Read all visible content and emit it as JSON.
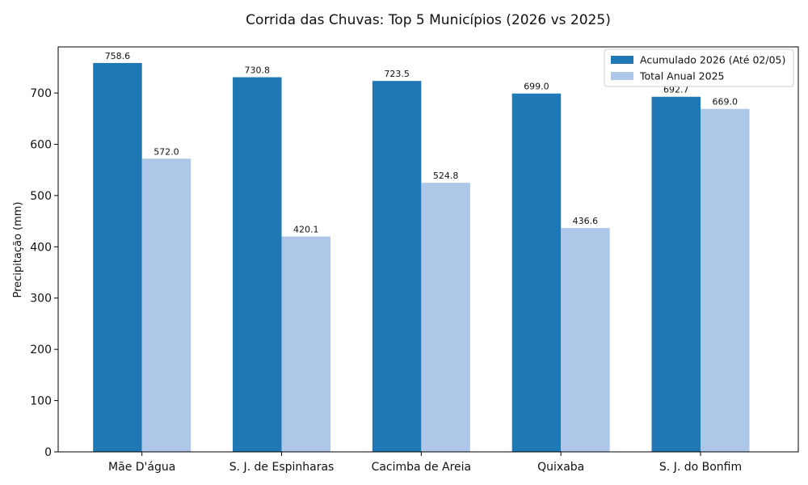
{
  "chart_data": {
    "type": "bar",
    "title": "Corrida das Chuvas: Top 5 Municípios (2026 vs 2025)",
    "xlabel": "",
    "ylabel": "Precipitação (mm)",
    "categories": [
      "Mãe D'água",
      "S. J. de Espinharas",
      "Cacimba de Areia",
      "Quixaba",
      "S. J. do Bonfim"
    ],
    "series": [
      {
        "name": "Acumulado 2026 (Até 02/05)",
        "color": "#1f77b4",
        "values": [
          758.6,
          730.8,
          723.5,
          699.0,
          692.7
        ],
        "labels": [
          "758.6",
          "730.8",
          "723.5",
          "699.0",
          "692.7"
        ]
      },
      {
        "name": "Total Anual 2025",
        "color": "#aec7e8",
        "values": [
          572.0,
          420.1,
          524.8,
          436.6,
          669.0
        ],
        "labels": [
          "572.0",
          "420.1",
          "524.8",
          "436.6",
          "669.0"
        ]
      }
    ],
    "ylim": [
      0,
      790
    ],
    "yticks": [
      0,
      100,
      200,
      300,
      400,
      500,
      600,
      700
    ],
    "ytick_labels": [
      "0",
      "100",
      "200",
      "300",
      "400",
      "500",
      "600",
      "700"
    ],
    "grid": false,
    "legend_position": "top-right"
  }
}
